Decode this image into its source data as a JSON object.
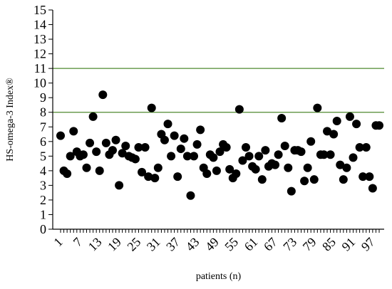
{
  "chart_data": {
    "type": "scatter",
    "title": "",
    "xlabel": "patients (n)",
    "ylabel": "HS-omega-3 Index®",
    "xlim": [
      1,
      99
    ],
    "ylim": [
      0,
      15
    ],
    "x_ticks": [
      1,
      7,
      13,
      19,
      25,
      31,
      37,
      43,
      49,
      55,
      61,
      67,
      73,
      79,
      85,
      91,
      97
    ],
    "y_ticks": [
      0,
      1,
      2,
      3,
      4,
      5,
      6,
      7,
      8,
      9,
      10,
      11,
      12,
      13,
      14,
      15
    ],
    "reference_lines": [
      8,
      11
    ],
    "colors": {
      "points": "#000000",
      "reference_lines": "#4f8a2f",
      "axes": "#000000",
      "background": "#ffffff"
    },
    "series": [
      {
        "x": [
          1,
          2,
          3,
          4,
          5,
          6,
          7,
          8,
          9,
          10,
          11,
          12,
          13,
          14,
          15,
          16,
          17,
          18,
          19,
          20,
          21,
          22,
          23,
          24,
          25,
          26,
          27,
          28,
          29,
          30,
          31,
          32,
          33,
          34,
          35,
          36,
          37,
          38,
          39,
          40,
          41,
          42,
          43,
          44,
          45,
          46,
          47,
          48,
          49,
          50,
          51,
          52,
          53,
          54,
          55,
          56,
          57,
          58,
          59,
          60,
          61,
          62,
          63,
          64,
          65,
          66,
          67,
          68,
          69,
          70,
          71,
          72,
          73,
          74,
          75,
          76,
          77,
          78,
          79,
          80,
          81,
          82,
          83,
          84,
          85,
          86,
          87,
          88,
          89,
          90,
          91,
          92,
          93,
          94,
          95,
          96,
          97,
          98,
          99
        ],
        "y": [
          6.4,
          4.0,
          3.8,
          5.0,
          6.7,
          5.3,
          5.0,
          5.1,
          4.2,
          5.9,
          7.7,
          5.3,
          4.0,
          9.2,
          5.9,
          5.1,
          5.4,
          6.1,
          3.0,
          5.2,
          5.7,
          5.0,
          4.9,
          4.8,
          5.6,
          3.9,
          5.6,
          3.6,
          8.3,
          3.5,
          4.2,
          6.5,
          6.1,
          7.2,
          5.0,
          6.4,
          3.6,
          5.5,
          6.2,
          5.0,
          2.3,
          5.0,
          5.8,
          6.8,
          4.2,
          3.8,
          5.1,
          4.9,
          4.0,
          5.3,
          5.8,
          5.6,
          4.1,
          3.5,
          3.8,
          8.2,
          4.7,
          5.6,
          5.0,
          4.3,
          4.1,
          5.0,
          3.4,
          5.4,
          4.3,
          4.5,
          4.4,
          5.1,
          7.6,
          5.7,
          4.2,
          2.6,
          5.4,
          5.4,
          5.3,
          3.3,
          4.2,
          6.0,
          3.4,
          8.3,
          5.1,
          5.1,
          6.7,
          5.1,
          6.5,
          7.4,
          4.4,
          3.4,
          4.2,
          7.7,
          4.9,
          7.2,
          5.6,
          3.6,
          5.6,
          3.6,
          2.8,
          7.1,
          7.1
        ]
      }
    ]
  }
}
